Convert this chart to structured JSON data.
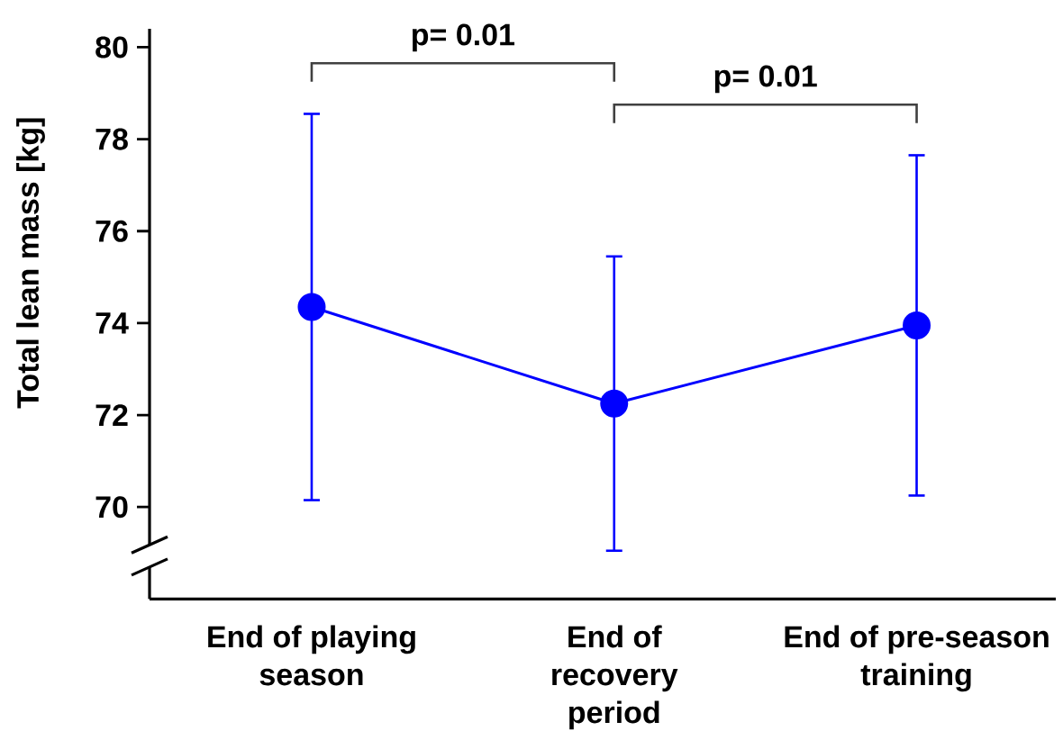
{
  "chart_data": {
    "type": "line",
    "ylabel": "Total lean mass [kg]",
    "categories": [
      "End of playing season",
      "End of recovery period",
      "End of pre-season training"
    ],
    "series": [
      {
        "color": "#0000ff",
        "values": [
          74.35,
          72.25,
          73.95
        ],
        "errors": [
          4.2,
          3.2,
          3.7
        ]
      }
    ],
    "ylim": [
      68,
      80.4
    ],
    "yticks": [
      70,
      72,
      74,
      76,
      78,
      80
    ],
    "marker": "circle",
    "line_style": "solid",
    "annotations": [
      "p= 0.01",
      "p= 0.01"
    ]
  }
}
